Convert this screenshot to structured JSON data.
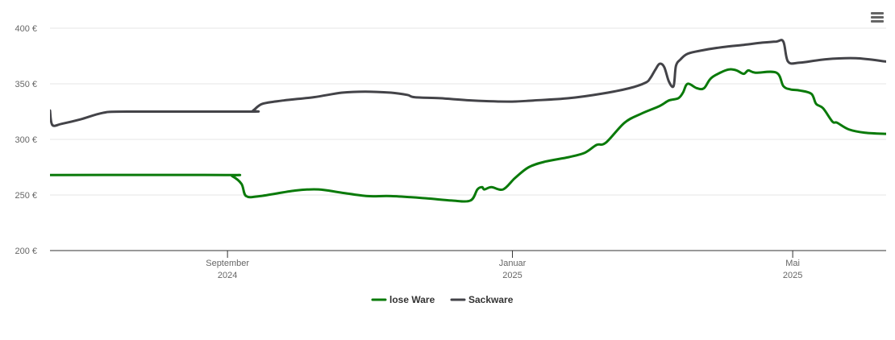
{
  "menu": {
    "icon": "hamburger-menu-icon"
  },
  "chart_data": {
    "type": "line",
    "title": "",
    "xlabel": "",
    "ylabel": "",
    "ylim": [
      200,
      400
    ],
    "xlim": [
      "2024-06-17",
      "2025-06-10"
    ],
    "grid": true,
    "legend_position": "bottom-center",
    "y_ticks": [
      {
        "value": 200,
        "label": "200 €"
      },
      {
        "value": 250,
        "label": "250 €"
      },
      {
        "value": 300,
        "label": "300 €"
      },
      {
        "value": 350,
        "label": "350 €"
      },
      {
        "value": 400,
        "label": "400 €"
      }
    ],
    "x_ticks": [
      {
        "date": "2024-09-01",
        "month": "September",
        "year": "2024"
      },
      {
        "date": "2025-01-01",
        "month": "Januar",
        "year": "2025"
      },
      {
        "date": "2025-05-01",
        "month": "Mai",
        "year": "2025"
      }
    ],
    "series": [
      {
        "name": "lose Ware",
        "color": "#0a7a0a",
        "points": [
          [
            "2024-06-17",
            268
          ],
          [
            "2024-08-31",
            268
          ],
          [
            "2024-09-03",
            267
          ],
          [
            "2024-09-07",
            260
          ],
          [
            "2024-09-09",
            249
          ],
          [
            "2024-09-15",
            249
          ],
          [
            "2024-09-30",
            254
          ],
          [
            "2024-10-10",
            255
          ],
          [
            "2024-10-20",
            252
          ],
          [
            "2024-10-31",
            249
          ],
          [
            "2024-11-10",
            249
          ],
          [
            "2024-11-25",
            247
          ],
          [
            "2024-12-06",
            245
          ],
          [
            "2024-12-14",
            245
          ],
          [
            "2024-12-17",
            255
          ],
          [
            "2024-12-19",
            257
          ],
          [
            "2024-12-20",
            255
          ],
          [
            "2024-12-23",
            257
          ],
          [
            "2024-12-28",
            255
          ],
          [
            "2025-01-02",
            265
          ],
          [
            "2025-01-08",
            275
          ],
          [
            "2025-01-15",
            280
          ],
          [
            "2025-01-25",
            284
          ],
          [
            "2025-02-01",
            288
          ],
          [
            "2025-02-06",
            295
          ],
          [
            "2025-02-10",
            297
          ],
          [
            "2025-02-18",
            315
          ],
          [
            "2025-02-25",
            323
          ],
          [
            "2025-03-05",
            330
          ],
          [
            "2025-03-09",
            335
          ],
          [
            "2025-03-13",
            337
          ],
          [
            "2025-03-15",
            342
          ],
          [
            "2025-03-17",
            350
          ],
          [
            "2025-03-21",
            346
          ],
          [
            "2025-03-24",
            346
          ],
          [
            "2025-03-27",
            355
          ],
          [
            "2025-04-01",
            361
          ],
          [
            "2025-04-04",
            363
          ],
          [
            "2025-04-07",
            362
          ],
          [
            "2025-04-10",
            359
          ],
          [
            "2025-04-12",
            362
          ],
          [
            "2025-04-15",
            360
          ],
          [
            "2025-04-24",
            360
          ],
          [
            "2025-04-27",
            348
          ],
          [
            "2025-04-30",
            345
          ],
          [
            "2025-05-04",
            344
          ],
          [
            "2025-05-09",
            341
          ],
          [
            "2025-05-11",
            332
          ],
          [
            "2025-05-14",
            328
          ],
          [
            "2025-05-18",
            316
          ],
          [
            "2025-05-20",
            315
          ],
          [
            "2025-05-25",
            309
          ],
          [
            "2025-06-01",
            306
          ],
          [
            "2025-06-10",
            305
          ]
        ]
      },
      {
        "name": "Sackware",
        "color": "#434348",
        "points": [
          [
            "2024-06-17",
            326
          ],
          [
            "2024-06-18",
            313
          ],
          [
            "2024-06-22",
            314
          ],
          [
            "2024-06-30",
            318
          ],
          [
            "2024-07-10",
            324
          ],
          [
            "2024-07-20",
            325
          ],
          [
            "2024-09-10",
            325
          ],
          [
            "2024-09-12",
            326
          ],
          [
            "2024-09-16",
            332
          ],
          [
            "2024-09-25",
            335
          ],
          [
            "2024-10-08",
            338
          ],
          [
            "2024-10-20",
            342
          ],
          [
            "2024-10-30",
            343
          ],
          [
            "2024-11-10",
            342
          ],
          [
            "2024-11-17",
            340
          ],
          [
            "2024-11-20",
            338
          ],
          [
            "2024-12-01",
            337
          ],
          [
            "2024-12-15",
            335
          ],
          [
            "2024-12-31",
            334
          ],
          [
            "2025-01-10",
            335
          ],
          [
            "2025-01-25",
            337
          ],
          [
            "2025-02-08",
            341
          ],
          [
            "2025-02-20",
            346
          ],
          [
            "2025-02-27",
            351
          ],
          [
            "2025-03-01",
            355
          ],
          [
            "2025-03-03",
            362
          ],
          [
            "2025-03-05",
            368
          ],
          [
            "2025-03-07",
            365
          ],
          [
            "2025-03-09",
            352
          ],
          [
            "2025-03-11",
            348
          ],
          [
            "2025-03-12",
            366
          ],
          [
            "2025-03-14",
            372
          ],
          [
            "2025-03-17",
            377
          ],
          [
            "2025-03-23",
            380
          ],
          [
            "2025-04-01",
            383
          ],
          [
            "2025-04-10",
            385
          ],
          [
            "2025-04-18",
            387
          ],
          [
            "2025-04-24",
            388
          ],
          [
            "2025-04-27",
            388
          ],
          [
            "2025-04-29",
            370
          ],
          [
            "2025-05-04",
            369
          ],
          [
            "2025-05-15",
            372
          ],
          [
            "2025-05-28",
            373
          ],
          [
            "2025-06-10",
            370
          ]
        ]
      }
    ]
  }
}
